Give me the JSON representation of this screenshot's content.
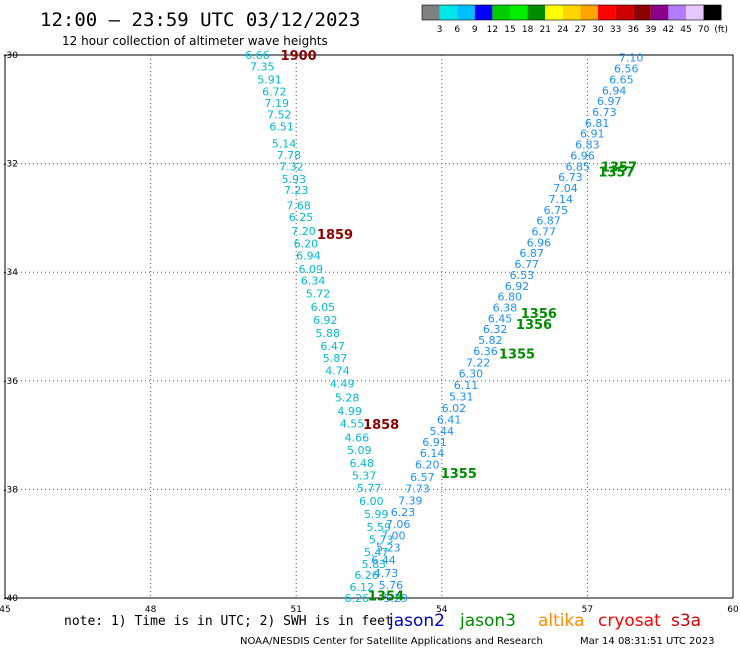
{
  "header": {
    "title": "12:00 – 23:59 UTC 03/12/2023",
    "subtitle": "12 hour collection of altimeter wave heights"
  },
  "colorbar": {
    "labels": [
      "3",
      "6",
      "9",
      "12",
      "15",
      "18",
      "21",
      "24",
      "27",
      "30",
      "33",
      "36",
      "39",
      "42",
      "45",
      "70"
    ],
    "unit": "(ft)",
    "colors": [
      "#808080",
      "#00e5e5",
      "#00bfff",
      "#0000ff",
      "#00cd00",
      "#00ee00",
      "#008b00",
      "#ffff00",
      "#ffd700",
      "#ffa500",
      "#ff0000",
      "#cd0000",
      "#8b0000",
      "#8b008b",
      "#b37cff",
      "#e6c8ff",
      "#000000"
    ]
  },
  "footer": {
    "note": "note: 1) Time is in UTC; 2) SWH is in feet",
    "credit": "NOAA/NESDIS Center for Satellite Applications and Research",
    "timestamp": "Mar 14 08:31:51 UTC 2023"
  },
  "legend": [
    {
      "name": "jason2",
      "color": "#0000cd"
    },
    {
      "name": "jason3",
      "color": "#008b00"
    },
    {
      "name": "altika",
      "color": "#ff8c00"
    },
    {
      "name": "cryosat",
      "color": "#ff0000"
    },
    {
      "name": "s3a",
      "color": "#cd0000"
    }
  ],
  "chart_data": {
    "type": "scatter",
    "xlim": [
      45,
      60
    ],
    "ylim": [
      -40,
      -30
    ],
    "xticks": [
      "45",
      "48",
      "51",
      "54",
      "57",
      "60"
    ],
    "yticks": [
      "-30",
      "-32",
      "-34",
      "-36",
      "-38",
      "-40"
    ],
    "grid": true,
    "series": [
      {
        "name": "jason3",
        "color": "#00bcd4",
        "points": [
          [
            50.2,
            -30.0,
            "6.66"
          ],
          [
            50.3,
            -30.21,
            "7.35"
          ],
          [
            50.45,
            -30.45,
            "5.91"
          ],
          [
            50.55,
            -30.67,
            "6.72"
          ],
          [
            50.6,
            -30.88,
            "7.19"
          ],
          [
            50.65,
            -31.1,
            "7.52"
          ],
          [
            50.7,
            -31.32,
            "6.51"
          ],
          [
            50.75,
            -31.63,
            "5.14"
          ],
          [
            50.85,
            -31.84,
            "7.78"
          ],
          [
            50.9,
            -32.05,
            "7.32"
          ],
          [
            50.95,
            -32.28,
            "5.93"
          ],
          [
            51.0,
            -32.49,
            "7.23"
          ],
          [
            51.05,
            -32.77,
            "7.68"
          ],
          [
            51.1,
            -32.98,
            "6.25"
          ],
          [
            51.15,
            -33.24,
            "7.20"
          ],
          [
            51.2,
            -33.47,
            "6.20"
          ],
          [
            51.25,
            -33.69,
            "6.94"
          ],
          [
            51.3,
            -33.94,
            "6.09"
          ],
          [
            51.35,
            -34.15,
            "6.34"
          ],
          [
            51.45,
            -34.39,
            "5.72"
          ],
          [
            51.55,
            -34.64,
            "6.05"
          ],
          [
            51.6,
            -34.88,
            "6.92"
          ],
          [
            51.65,
            -35.12,
            "5.88"
          ],
          [
            51.75,
            -35.36,
            "6.47"
          ],
          [
            51.8,
            -35.58,
            "5.87"
          ],
          [
            51.85,
            -35.81,
            "4.74"
          ],
          [
            51.95,
            -36.05,
            "4.49"
          ],
          [
            52.05,
            -36.31,
            "5.28"
          ],
          [
            52.1,
            -36.56,
            "4.99"
          ],
          [
            52.15,
            -36.79,
            "4.55"
          ],
          [
            52.25,
            -37.04,
            "4.66"
          ],
          [
            52.3,
            -37.27,
            "5.09"
          ],
          [
            52.35,
            -37.51,
            "6.48"
          ],
          [
            52.4,
            -37.74,
            "5.37"
          ],
          [
            52.5,
            -37.97,
            "5.77"
          ],
          [
            52.55,
            -38.21,
            "6.00"
          ],
          [
            52.65,
            -38.45,
            "5.99"
          ],
          [
            52.7,
            -38.69,
            "5.59"
          ],
          [
            52.75,
            -38.92,
            "5.73"
          ],
          [
            52.65,
            -39.15,
            "5.47"
          ],
          [
            52.6,
            -39.37,
            "5.83"
          ],
          [
            52.45,
            -39.58,
            "6.26"
          ],
          [
            52.35,
            -39.8,
            "6.12"
          ],
          [
            52.25,
            -40.0,
            "6.26"
          ]
        ]
      },
      {
        "name": "jason2",
        "color": "#1e90ff",
        "points": [
          [
            53.05,
            -40.0,
            "5.29"
          ],
          [
            52.95,
            -39.76,
            "5.76"
          ],
          [
            52.85,
            -39.54,
            "4.73"
          ],
          [
            52.8,
            -39.3,
            "6.44"
          ],
          [
            52.9,
            -39.07,
            "5.23"
          ],
          [
            53.0,
            -38.85,
            "7.00"
          ],
          [
            53.1,
            -38.64,
            "7.06"
          ],
          [
            53.2,
            -38.42,
            "6.23"
          ],
          [
            53.35,
            -38.2,
            "7.39"
          ],
          [
            53.5,
            -37.98,
            "7.73"
          ],
          [
            53.6,
            -37.77,
            "6.57"
          ],
          [
            53.7,
            -37.54,
            "6.20"
          ],
          [
            53.8,
            -37.33,
            "6.14"
          ],
          [
            53.85,
            -37.13,
            "6.91"
          ],
          [
            54.0,
            -36.92,
            "5.44"
          ],
          [
            54.15,
            -36.71,
            "6.41"
          ],
          [
            54.25,
            -36.5,
            "6.02"
          ],
          [
            54.4,
            -36.29,
            "5.31"
          ],
          [
            54.5,
            -36.08,
            "6.11"
          ],
          [
            54.6,
            -35.87,
            "6.30"
          ],
          [
            54.75,
            -35.66,
            "7.22"
          ],
          [
            54.9,
            -35.45,
            "6.36"
          ],
          [
            55.0,
            -35.25,
            "5.82"
          ],
          [
            55.1,
            -35.05,
            "6.32"
          ],
          [
            55.2,
            -34.85,
            "6.45"
          ],
          [
            55.3,
            -34.65,
            "6.38"
          ],
          [
            55.4,
            -34.45,
            "6.80"
          ],
          [
            55.55,
            -34.25,
            "6.92"
          ],
          [
            55.65,
            -34.05,
            "6.53"
          ],
          [
            55.75,
            -33.85,
            "6.77"
          ],
          [
            55.85,
            -33.65,
            "6.87"
          ],
          [
            56.0,
            -33.45,
            "6.96"
          ],
          [
            56.1,
            -33.25,
            "6.77"
          ],
          [
            56.2,
            -33.05,
            "6.87"
          ],
          [
            56.35,
            -32.85,
            "6.75"
          ],
          [
            56.45,
            -32.65,
            "7.14"
          ],
          [
            56.55,
            -32.45,
            "7.04"
          ],
          [
            56.65,
            -32.25,
            "6.73"
          ],
          [
            56.8,
            -32.05,
            "6.85"
          ],
          [
            56.9,
            -31.85,
            "6.96"
          ],
          [
            57.0,
            -31.65,
            "6.83"
          ],
          [
            57.1,
            -31.45,
            "6.91"
          ],
          [
            57.2,
            -31.25,
            "6.81"
          ],
          [
            57.35,
            -31.05,
            "6.73"
          ],
          [
            57.45,
            -30.85,
            "6.97"
          ],
          [
            57.55,
            -30.65,
            "6.94"
          ],
          [
            57.7,
            -30.45,
            "6.65"
          ],
          [
            57.8,
            -30.25,
            "6.56"
          ],
          [
            57.9,
            -30.05,
            "7.10"
          ]
        ]
      }
    ],
    "annotations": [
      {
        "text": "1900",
        "x": 51.05,
        "y": -30.0,
        "color": "#8b0000"
      },
      {
        "text": "1859",
        "x": 51.8,
        "y": -33.3,
        "color": "#8b0000"
      },
      {
        "text": "1858",
        "x": 52.75,
        "y": -36.8,
        "color": "#8b0000"
      },
      {
        "text": "1357",
        "x": 57.65,
        "y": -32.05,
        "color": "#008b00"
      },
      {
        "text": "1357",
        "x": 57.6,
        "y": -32.15,
        "color": "#008b00"
      },
      {
        "text": "1356",
        "x": 56.0,
        "y": -34.75,
        "color": "#008b00"
      },
      {
        "text": "1356",
        "x": 55.9,
        "y": -34.95,
        "color": "#008b00"
      },
      {
        "text": "1355",
        "x": 55.55,
        "y": -35.5,
        "color": "#008b00"
      },
      {
        "text": "1355",
        "x": 54.35,
        "y": -37.7,
        "color": "#008b00"
      },
      {
        "text": "1354",
        "x": 52.85,
        "y": -39.95,
        "color": "#008b00"
      }
    ]
  }
}
